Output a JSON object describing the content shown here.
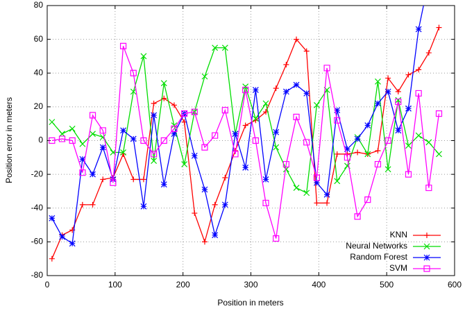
{
  "chart_data": {
    "type": "line",
    "xlabel": "Position in meters",
    "ylabel": "Position error in meters",
    "x": [
      7,
      22,
      37,
      52,
      67,
      82,
      97,
      112,
      127,
      142,
      157,
      172,
      187,
      202,
      217,
      232,
      247,
      262,
      277,
      292,
      307,
      322,
      337,
      352,
      367,
      382,
      397,
      412,
      427,
      442,
      457,
      472,
      487,
      502,
      517,
      532,
      547,
      562,
      577
    ],
    "series": [
      {
        "name": "KNN",
        "color": "#ff0000",
        "marker": "plus",
        "values": [
          -70,
          -56,
          -53,
          -38,
          -38,
          -23,
          -22,
          -8,
          -23,
          -23,
          22,
          25,
          21,
          11,
          -43,
          -60,
          -38,
          -22,
          -6,
          9,
          12,
          17,
          31,
          45,
          60,
          53,
          -37,
          -37,
          -8,
          -8,
          -7,
          -8,
          -6,
          37,
          29,
          39,
          42,
          52,
          67
        ]
      },
      {
        "name": "Neural Networks",
        "color": "#00dd00",
        "marker": "cross",
        "values": [
          11,
          4,
          7,
          -2,
          4,
          2,
          -7,
          -7,
          29,
          50,
          -12,
          34,
          9,
          -14,
          17,
          38,
          55,
          55,
          4,
          32,
          13,
          22,
          -4,
          -17,
          -28,
          -31,
          21,
          30,
          -24,
          -15,
          2,
          -8,
          35,
          -17,
          24,
          -3,
          3,
          -1,
          -8
        ]
      },
      {
        "name": "Random Forest",
        "color": "#0000ff",
        "marker": "star",
        "values": [
          -46,
          -57,
          -61,
          -11,
          -20,
          -4,
          -23,
          6,
          1,
          -39,
          15,
          -26,
          4,
          16,
          -9,
          -29,
          -56,
          -38,
          4,
          -16,
          30,
          -23,
          5,
          29,
          33,
          28,
          -25,
          -32,
          18,
          -5,
          1,
          9,
          22,
          29,
          6,
          19,
          66,
          95,
          null
        ]
      },
      {
        "name": "SVM",
        "color": "#ff00ff",
        "marker": "square",
        "values": [
          0,
          1,
          0,
          -19,
          15,
          6,
          -25,
          56,
          40,
          0,
          -8,
          0,
          7,
          16,
          17,
          -4,
          3,
          18,
          -8,
          30,
          0,
          -37,
          -58,
          -14,
          14,
          -1,
          -22,
          43,
          12,
          -10,
          -45,
          -35,
          -14,
          0,
          23,
          -20,
          28,
          -28,
          16
        ]
      }
    ],
    "xlim": [
      0,
      600
    ],
    "xticks": [
      0,
      100,
      200,
      300,
      400,
      500,
      600
    ],
    "ylim": [
      -80,
      80
    ],
    "yticks": [
      -80,
      -60,
      -40,
      -20,
      0,
      20,
      40,
      60,
      80
    ],
    "grid": true,
    "legend": "bottom-right"
  }
}
